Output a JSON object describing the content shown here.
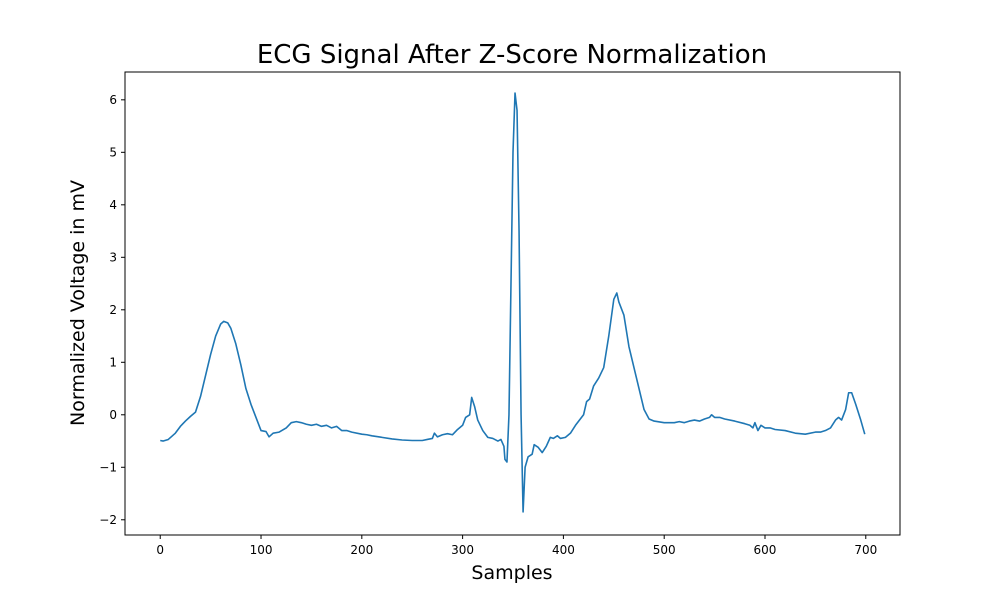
{
  "chart_data": {
    "type": "line",
    "title": "ECG Signal After Z-Score Normalization",
    "x_label": "Samples",
    "y_label": "Normalized Voltage in mV",
    "x": [
      0,
      3,
      8,
      15,
      20,
      25,
      30,
      35,
      40,
      45,
      50,
      55,
      60,
      63,
      67,
      70,
      75,
      80,
      85,
      90,
      95,
      100,
      105,
      108,
      112,
      118,
      125,
      130,
      135,
      140,
      145,
      150,
      155,
      160,
      165,
      170,
      175,
      180,
      185,
      190,
      200,
      205,
      210,
      220,
      230,
      240,
      250,
      260,
      265,
      270,
      272,
      275,
      280,
      285,
      290,
      295,
      300,
      303,
      307,
      309,
      312,
      315,
      320,
      325,
      330,
      335,
      338,
      341,
      342,
      344,
      346,
      348,
      350,
      352,
      354,
      356,
      358,
      360,
      362,
      365,
      369,
      371,
      375,
      379,
      383,
      387,
      390,
      394,
      397,
      402,
      407,
      412,
      418,
      420,
      423,
      426,
      430,
      435,
      440,
      445,
      450,
      453,
      455,
      460,
      465,
      470,
      475,
      480,
      485,
      490,
      500,
      510,
      515,
      520,
      525,
      530,
      535,
      540,
      545,
      547,
      550,
      555,
      560,
      570,
      580,
      585,
      588,
      590,
      593,
      596,
      600,
      605,
      610,
      620,
      630,
      640,
      650,
      655,
      660,
      665,
      670,
      673,
      676,
      680,
      683,
      686,
      690,
      695,
      699
    ],
    "series": [
      {
        "name": "ECG",
        "color": "#1f77b4",
        "values": [
          -0.49,
          -0.5,
          -0.47,
          -0.35,
          -0.22,
          -0.12,
          -0.03,
          0.05,
          0.35,
          0.75,
          1.15,
          1.5,
          1.73,
          1.78,
          1.75,
          1.65,
          1.35,
          0.95,
          0.5,
          0.2,
          -0.05,
          -0.3,
          -0.32,
          -0.42,
          -0.35,
          -0.33,
          -0.25,
          -0.15,
          -0.13,
          -0.15,
          -0.18,
          -0.2,
          -0.18,
          -0.22,
          -0.2,
          -0.25,
          -0.22,
          -0.3,
          -0.3,
          -0.33,
          -0.37,
          -0.38,
          -0.4,
          -0.43,
          -0.46,
          -0.48,
          -0.49,
          -0.49,
          -0.47,
          -0.45,
          -0.35,
          -0.42,
          -0.38,
          -0.36,
          -0.38,
          -0.28,
          -0.2,
          -0.05,
          0.0,
          0.33,
          0.15,
          -0.1,
          -0.3,
          -0.43,
          -0.45,
          -0.5,
          -0.47,
          -0.6,
          -0.85,
          -0.9,
          0.0,
          2.5,
          5.0,
          6.13,
          5.8,
          3.5,
          0.0,
          -1.85,
          -1.0,
          -0.8,
          -0.75,
          -0.57,
          -0.62,
          -0.72,
          -0.6,
          -0.43,
          -0.45,
          -0.4,
          -0.45,
          -0.43,
          -0.35,
          -0.2,
          -0.05,
          0.0,
          0.25,
          0.3,
          0.55,
          0.7,
          0.9,
          1.5,
          2.2,
          2.32,
          2.15,
          1.9,
          1.3,
          0.9,
          0.5,
          0.1,
          -0.08,
          -0.12,
          -0.15,
          -0.15,
          -0.13,
          -0.15,
          -0.12,
          -0.1,
          -0.12,
          -0.08,
          -0.05,
          0.0,
          -0.05,
          -0.05,
          -0.08,
          -0.12,
          -0.17,
          -0.2,
          -0.25,
          -0.15,
          -0.3,
          -0.2,
          -0.25,
          -0.25,
          -0.28,
          -0.3,
          -0.35,
          -0.37,
          -0.33,
          -0.33,
          -0.3,
          -0.25,
          -0.1,
          -0.05,
          -0.1,
          0.1,
          0.42,
          0.42,
          0.2,
          -0.1,
          -0.37
        ]
      }
    ],
    "xlim": [
      -34.95,
      733.95
    ],
    "ylim": [
      -2.29,
      6.53
    ],
    "xticks": [
      0,
      100,
      200,
      300,
      400,
      500,
      600,
      700
    ],
    "yticks": [
      {
        "value": -2,
        "label": "−2"
      },
      {
        "value": -1,
        "label": "−1"
      },
      0,
      1,
      2,
      3,
      4,
      5,
      6
    ],
    "grid": false
  }
}
